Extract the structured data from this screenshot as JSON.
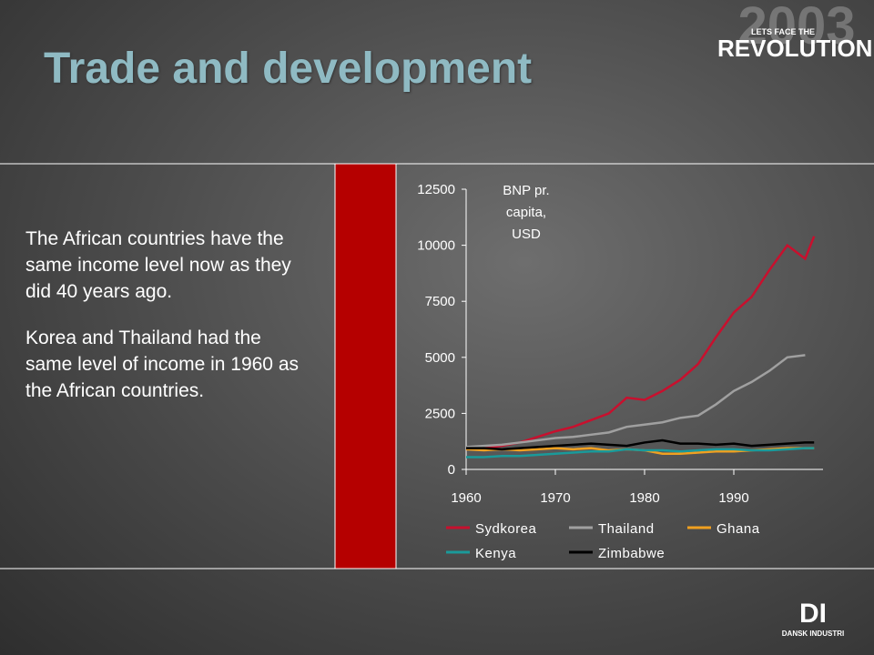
{
  "slide": {
    "title": "Trade and development",
    "paragraphs": [
      "The African countries have the same income level now as they did 40 years ago.",
      "Korea and Thailand had the same level of income in 1960 as the African countries."
    ],
    "logo_tagline": "LETS FACE THE",
    "logo_word": "REVOLUTION",
    "logo_year": "2003",
    "company_mark": "DI",
    "company_name": "DANSK INDUSTRI"
  },
  "chart_data": {
    "type": "line",
    "y_label": [
      "BNP pr.",
      "capita,",
      "USD"
    ],
    "x": [
      1960,
      1962,
      1964,
      1966,
      1968,
      1970,
      1972,
      1974,
      1976,
      1978,
      1980,
      1982,
      1984,
      1986,
      1988,
      1990,
      1992,
      1994,
      1996,
      1998,
      1999
    ],
    "xlim": [
      1960,
      2000
    ],
    "xticks": [
      1960,
      1970,
      1980,
      1990
    ],
    "ylim": [
      0,
      12500
    ],
    "yticks": [
      0,
      2500,
      5000,
      7500,
      10000,
      12500
    ],
    "series": [
      {
        "name": "Sydkorea",
        "color": "#c8102e",
        "values": [
          900,
          950,
          1050,
          1200,
          1450,
          1700,
          1900,
          2200,
          2500,
          3200,
          3100,
          3500,
          4000,
          4700,
          5900,
          7000,
          7700,
          8900,
          10000,
          9400,
          10400
        ]
      },
      {
        "name": "Thailand",
        "color": "#a0a0a0",
        "values": [
          1000,
          1050,
          1100,
          1200,
          1300,
          1400,
          1450,
          1550,
          1650,
          1900,
          2000,
          2100,
          2300,
          2400,
          2900,
          3500,
          3900,
          4400,
          5000,
          5100,
          null
        ]
      },
      {
        "name": "Ghana",
        "color": "#f0a020",
        "values": [
          900,
          850,
          900,
          850,
          900,
          950,
          900,
          950,
          850,
          900,
          850,
          700,
          700,
          750,
          800,
          800,
          850,
          900,
          950,
          950,
          950
        ]
      },
      {
        "name": "Kenya",
        "color": "#1a9a9a",
        "values": [
          550,
          550,
          600,
          600,
          650,
          700,
          750,
          800,
          800,
          900,
          850,
          850,
          800,
          850,
          900,
          900,
          850,
          850,
          900,
          950,
          950
        ]
      },
      {
        "name": "Zimbabwe",
        "color": "#000000",
        "values": [
          950,
          950,
          900,
          950,
          1000,
          1050,
          1100,
          1150,
          1100,
          1050,
          1200,
          1300,
          1150,
          1150,
          1100,
          1150,
          1050,
          1100,
          1150,
          1200,
          1200
        ]
      }
    ]
  }
}
